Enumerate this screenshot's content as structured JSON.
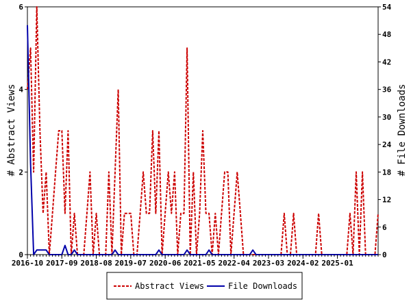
{
  "chart_data": {
    "type": "line",
    "title": "",
    "x": [
      0,
      1,
      2,
      3,
      4,
      5,
      6,
      7,
      8,
      9,
      10,
      11,
      12,
      13,
      14,
      15,
      16,
      17,
      18,
      19,
      20,
      21,
      22,
      23,
      24,
      25,
      26,
      27,
      28,
      29,
      30,
      31,
      32,
      33,
      34,
      35,
      36,
      37,
      38,
      39,
      40,
      41,
      42,
      43,
      44,
      45,
      46,
      47,
      48,
      49,
      50,
      51,
      52,
      53,
      54,
      55,
      56,
      57,
      58,
      59,
      60,
      61,
      62,
      63,
      64,
      65,
      66,
      67,
      68,
      69,
      70,
      71,
      72,
      73,
      74,
      75,
      76,
      77,
      78,
      79,
      80,
      81,
      82,
      83,
      84,
      85,
      86,
      87,
      88,
      89,
      90,
      91,
      92,
      93,
      94,
      95,
      96,
      97,
      98,
      99,
      100,
      101,
      102,
      103,
      104,
      105,
      106,
      107,
      108,
      109,
      110,
      111,
      112
    ],
    "x_range": [
      0,
      112
    ],
    "x_tick_positions": [
      0,
      11,
      22,
      33,
      44,
      55,
      66,
      77,
      88,
      99
    ],
    "x_tick_labels": [
      "2016-10",
      "2017-09",
      "2018-08",
      "2019-07",
      "2020-06",
      "2021-05",
      "2022-04",
      "2023-03",
      "2024-02",
      "2025-01"
    ],
    "ylabel_left": "# Abstract Views",
    "ylabel_right": "# File Downloads",
    "ylim_left": [
      0,
      6
    ],
    "ylim_right": [
      0,
      54
    ],
    "yticks_left": [
      "0",
      "2",
      "4",
      "6"
    ],
    "yticks_right": [
      "0",
      "6",
      "12",
      "18",
      "24",
      "30",
      "36",
      "42",
      "48",
      "54"
    ],
    "legend_position": "bottom-center",
    "series": [
      {
        "name": "Abstract Views",
        "axis": "left",
        "color": "#cc0000",
        "style": "dashed",
        "values": [
          4,
          5,
          2,
          6,
          3,
          1,
          2,
          0,
          1,
          2,
          3,
          3,
          1,
          3,
          0,
          1,
          0,
          0,
          0,
          1,
          2,
          0,
          1,
          0,
          0,
          0,
          2,
          0,
          2,
          4,
          0,
          1,
          1,
          1,
          0,
          0,
          1,
          2,
          1,
          1,
          3,
          1,
          3,
          0,
          1,
          2,
          1,
          2,
          0,
          1,
          1,
          5,
          0,
          2,
          0,
          1,
          3,
          1,
          1,
          0,
          1,
          0,
          1,
          2,
          2,
          0,
          1,
          2,
          1,
          0,
          0,
          0,
          0,
          0,
          0,
          0,
          0,
          0,
          0,
          0,
          0,
          0,
          1,
          0,
          0,
          1,
          0,
          0,
          0,
          0,
          0,
          0,
          0,
          1,
          0,
          0,
          0,
          0,
          0,
          0,
          0,
          0,
          0,
          1,
          0,
          2,
          0,
          2,
          0,
          0,
          0,
          0,
          1
        ]
      },
      {
        "name": "File Downloads",
        "axis": "right",
        "color": "#0000aa",
        "style": "solid",
        "values": [
          50,
          20,
          0,
          1,
          1,
          1,
          1,
          0,
          0,
          0,
          0,
          0,
          2,
          0,
          0,
          1,
          0,
          0,
          0,
          0,
          0,
          0,
          0,
          0,
          0,
          0,
          0,
          0,
          1,
          0,
          0,
          0,
          0,
          0,
          0,
          0,
          0,
          0,
          0,
          0,
          0,
          0,
          1,
          0,
          0,
          0,
          0,
          0,
          0,
          0,
          0,
          1,
          0,
          0,
          0,
          0,
          0,
          0,
          1,
          0,
          0,
          0,
          0,
          0,
          0,
          0,
          0,
          0,
          0,
          0,
          0,
          0,
          1,
          0,
          0,
          0,
          0,
          0,
          0,
          0,
          0,
          0,
          0,
          0,
          0,
          0,
          0,
          0,
          0,
          0,
          0,
          0,
          0,
          0,
          0,
          0,
          0,
          0,
          0,
          0,
          0,
          0,
          0,
          0,
          0,
          0,
          0,
          0,
          0,
          0,
          0,
          0,
          0
        ]
      }
    ]
  }
}
